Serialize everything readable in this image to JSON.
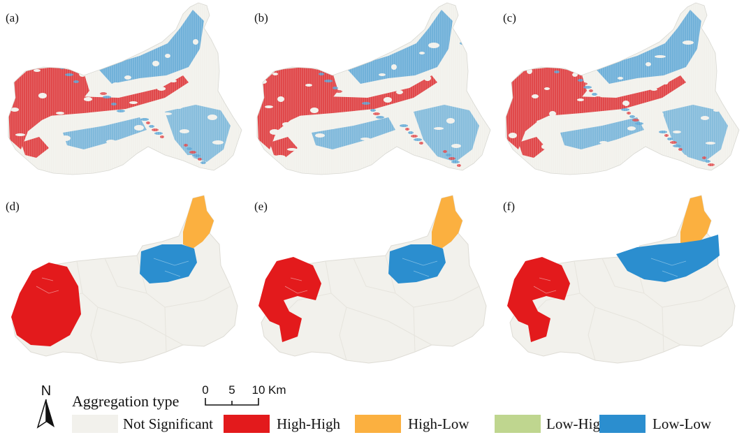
{
  "panels": [
    {
      "label": "(a)",
      "style": "grid"
    },
    {
      "label": "(b)",
      "style": "grid"
    },
    {
      "label": "(c)",
      "style": "grid"
    },
    {
      "label": "(d)",
      "style": "region",
      "low_low": "small"
    },
    {
      "label": "(e)",
      "style": "region",
      "low_low": "small"
    },
    {
      "label": "(f)",
      "style": "region",
      "low_low": "wide"
    }
  ],
  "legend": {
    "title": "Aggregation type",
    "north_label": "N",
    "scale_ticks": [
      "0",
      "5",
      "10"
    ],
    "scale_unit": "Km",
    "items": [
      {
        "label": "Not Significant",
        "color": "#f2f1ec"
      },
      {
        "label": "High-High",
        "color": "#e31a1c"
      },
      {
        "label": "High-Low",
        "color": "#fbb040"
      },
      {
        "label": "Low-High",
        "color": "#bfd68f"
      },
      {
        "label": "Low-Low",
        "color": "#2b8ecf"
      }
    ]
  },
  "colors": {
    "not_significant": "#f2f1ec",
    "high_high_grid": "#e0484a",
    "low_low_grid": "#5aa6d6",
    "high_high": "#e31a1c",
    "high_low": "#fbb040",
    "low_low": "#2b8ecf"
  }
}
